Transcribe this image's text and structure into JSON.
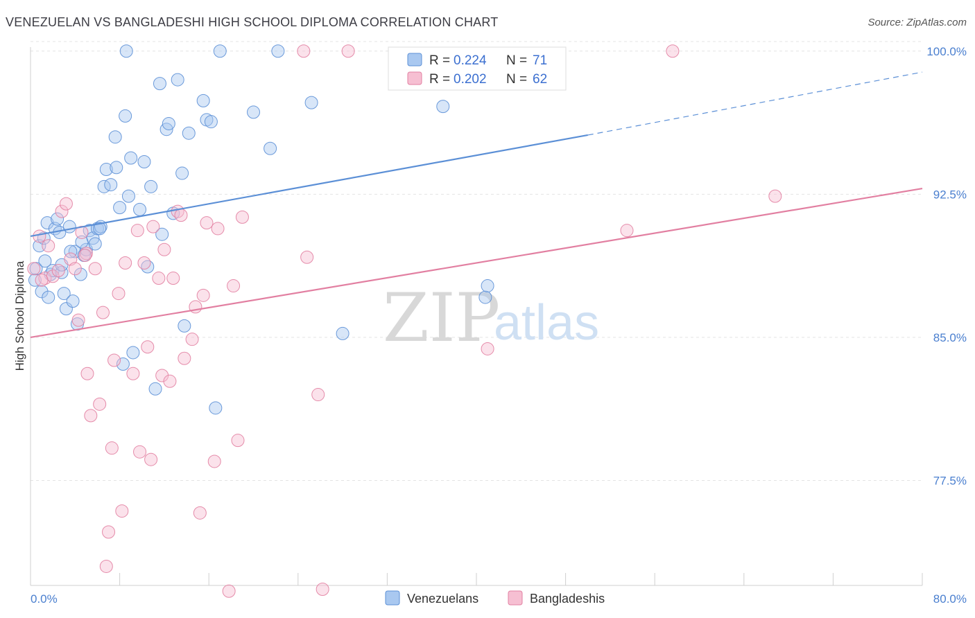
{
  "title": "VENEZUELAN VS BANGLADESHI HIGH SCHOOL DIPLOMA CORRELATION CHART",
  "source": "Source: ZipAtlas.com",
  "watermark": {
    "zip": "ZIP",
    "atlas": "atlas"
  },
  "chart_data": {
    "type": "scatter",
    "ylabel": "High School Diploma",
    "xlim": [
      0,
      80
    ],
    "ylim": [
      72,
      100.5
    ],
    "x_tick_labels": [
      "0.0%",
      "80.0%"
    ],
    "y_ticks": [
      77.5,
      85.0,
      92.5,
      100.0
    ],
    "y_tick_labels": [
      "77.5%",
      "85.0%",
      "92.5%",
      "100.0%"
    ],
    "grid": true,
    "legend_top": [
      {
        "r_label": "R =",
        "r_value": "0.224",
        "n_label": "N =",
        "n_value": "71"
      },
      {
        "r_label": "R =",
        "r_value": "0.202",
        "n_label": "N =",
        "n_value": "62"
      }
    ],
    "series": [
      {
        "name": "Venezuelans",
        "color": "#5b8fd6",
        "fill": "#a9c8f0",
        "trend": {
          "x0": 0,
          "y0": 90.3,
          "x1": 50,
          "y1": 95.6,
          "x_dash_end": 80,
          "y_dash_end": 98.9
        },
        "points": [
          [
            0.5,
            88.6
          ],
          [
            0.8,
            89.8
          ],
          [
            1.0,
            87.4
          ],
          [
            1.2,
            90.2
          ],
          [
            1.5,
            91.0
          ],
          [
            1.6,
            87.1
          ],
          [
            1.8,
            88.3
          ],
          [
            2.0,
            88.5
          ],
          [
            2.2,
            90.7
          ],
          [
            2.4,
            91.2
          ],
          [
            2.6,
            90.5
          ],
          [
            2.8,
            88.4
          ],
          [
            3.0,
            87.3
          ],
          [
            3.2,
            86.5
          ],
          [
            3.5,
            90.8
          ],
          [
            3.8,
            86.9
          ],
          [
            4.0,
            89.5
          ],
          [
            4.2,
            85.7
          ],
          [
            4.5,
            88.3
          ],
          [
            4.8,
            89.3
          ],
          [
            5.0,
            89.6
          ],
          [
            5.3,
            90.6
          ],
          [
            5.6,
            90.2
          ],
          [
            5.8,
            89.9
          ],
          [
            6.0,
            90.7
          ],
          [
            6.3,
            90.8
          ],
          [
            6.6,
            92.9
          ],
          [
            6.8,
            93.8
          ],
          [
            7.2,
            93.0
          ],
          [
            7.6,
            95.5
          ],
          [
            7.7,
            93.9
          ],
          [
            8.0,
            91.8
          ],
          [
            8.3,
            83.6
          ],
          [
            8.5,
            96.6
          ],
          [
            8.8,
            92.4
          ],
          [
            9.0,
            94.4
          ],
          [
            9.2,
            84.2
          ],
          [
            9.8,
            91.7
          ],
          [
            10.2,
            94.2
          ],
          [
            10.5,
            88.7
          ],
          [
            10.8,
            92.9
          ],
          [
            11.2,
            82.3
          ],
          [
            11.6,
            98.3
          ],
          [
            11.8,
            90.4
          ],
          [
            12.2,
            95.9
          ],
          [
            12.4,
            96.2
          ],
          [
            12.8,
            91.5
          ],
          [
            13.2,
            98.5
          ],
          [
            13.6,
            93.6
          ],
          [
            13.8,
            85.6
          ],
          [
            14.2,
            95.7
          ],
          [
            15.5,
            97.4
          ],
          [
            15.8,
            96.4
          ],
          [
            16.2,
            96.3
          ],
          [
            16.6,
            81.3
          ],
          [
            17.0,
            100.0
          ],
          [
            20.0,
            96.8
          ],
          [
            21.5,
            94.9
          ],
          [
            22.2,
            100.0
          ],
          [
            25.2,
            97.3
          ],
          [
            28.0,
            85.2
          ],
          [
            37.0,
            97.1
          ],
          [
            40.8,
            87.1
          ],
          [
            41.0,
            87.7
          ],
          [
            8.6,
            100.0
          ],
          [
            2.8,
            88.8
          ],
          [
            3.6,
            89.5
          ],
          [
            6.2,
            90.7
          ],
          [
            1.3,
            89.0
          ],
          [
            0.4,
            88.0
          ],
          [
            4.6,
            90.0
          ]
        ]
      },
      {
        "name": "Bangladeshis",
        "color": "#e27fa1",
        "fill": "#f6bfd2",
        "trend": {
          "x0": 0,
          "y0": 85.0,
          "x1": 80,
          "y1": 92.8
        },
        "points": [
          [
            0.3,
            88.6
          ],
          [
            0.8,
            90.3
          ],
          [
            1.3,
            88.1
          ],
          [
            1.6,
            89.8
          ],
          [
            2.0,
            88.2
          ],
          [
            2.5,
            88.5
          ],
          [
            2.8,
            91.6
          ],
          [
            3.2,
            92.0
          ],
          [
            3.6,
            89.1
          ],
          [
            4.0,
            88.6
          ],
          [
            4.3,
            85.9
          ],
          [
            4.6,
            90.5
          ],
          [
            5.0,
            89.4
          ],
          [
            5.1,
            83.1
          ],
          [
            5.4,
            80.9
          ],
          [
            5.8,
            88.6
          ],
          [
            6.2,
            81.5
          ],
          [
            6.5,
            86.3
          ],
          [
            6.8,
            73.0
          ],
          [
            7.0,
            74.8
          ],
          [
            7.3,
            79.2
          ],
          [
            7.5,
            83.8
          ],
          [
            7.9,
            87.3
          ],
          [
            8.2,
            75.9
          ],
          [
            8.5,
            88.9
          ],
          [
            9.2,
            83.1
          ],
          [
            9.6,
            90.6
          ],
          [
            9.8,
            79.0
          ],
          [
            10.2,
            88.9
          ],
          [
            10.5,
            84.5
          ],
          [
            10.8,
            78.6
          ],
          [
            11.0,
            90.8
          ],
          [
            11.5,
            88.1
          ],
          [
            11.8,
            83.0
          ],
          [
            12.0,
            89.6
          ],
          [
            12.5,
            82.7
          ],
          [
            12.8,
            88.1
          ],
          [
            13.2,
            91.6
          ],
          [
            13.5,
            91.4
          ],
          [
            13.8,
            83.9
          ],
          [
            14.5,
            84.9
          ],
          [
            14.8,
            86.6
          ],
          [
            15.2,
            75.8
          ],
          [
            15.5,
            87.2
          ],
          [
            15.8,
            91.0
          ],
          [
            16.5,
            78.5
          ],
          [
            16.8,
            90.7
          ],
          [
            17.8,
            71.7
          ],
          [
            18.2,
            87.7
          ],
          [
            18.6,
            79.6
          ],
          [
            19.0,
            91.3
          ],
          [
            24.5,
            100.0
          ],
          [
            24.8,
            89.2
          ],
          [
            25.8,
            82.0
          ],
          [
            26.2,
            71.8
          ],
          [
            28.5,
            100.0
          ],
          [
            41.0,
            84.4
          ],
          [
            53.5,
            90.6
          ],
          [
            57.6,
            100.0
          ],
          [
            66.8,
            92.4
          ],
          [
            1.0,
            88.0
          ],
          [
            4.9,
            89.3
          ]
        ]
      }
    ]
  }
}
